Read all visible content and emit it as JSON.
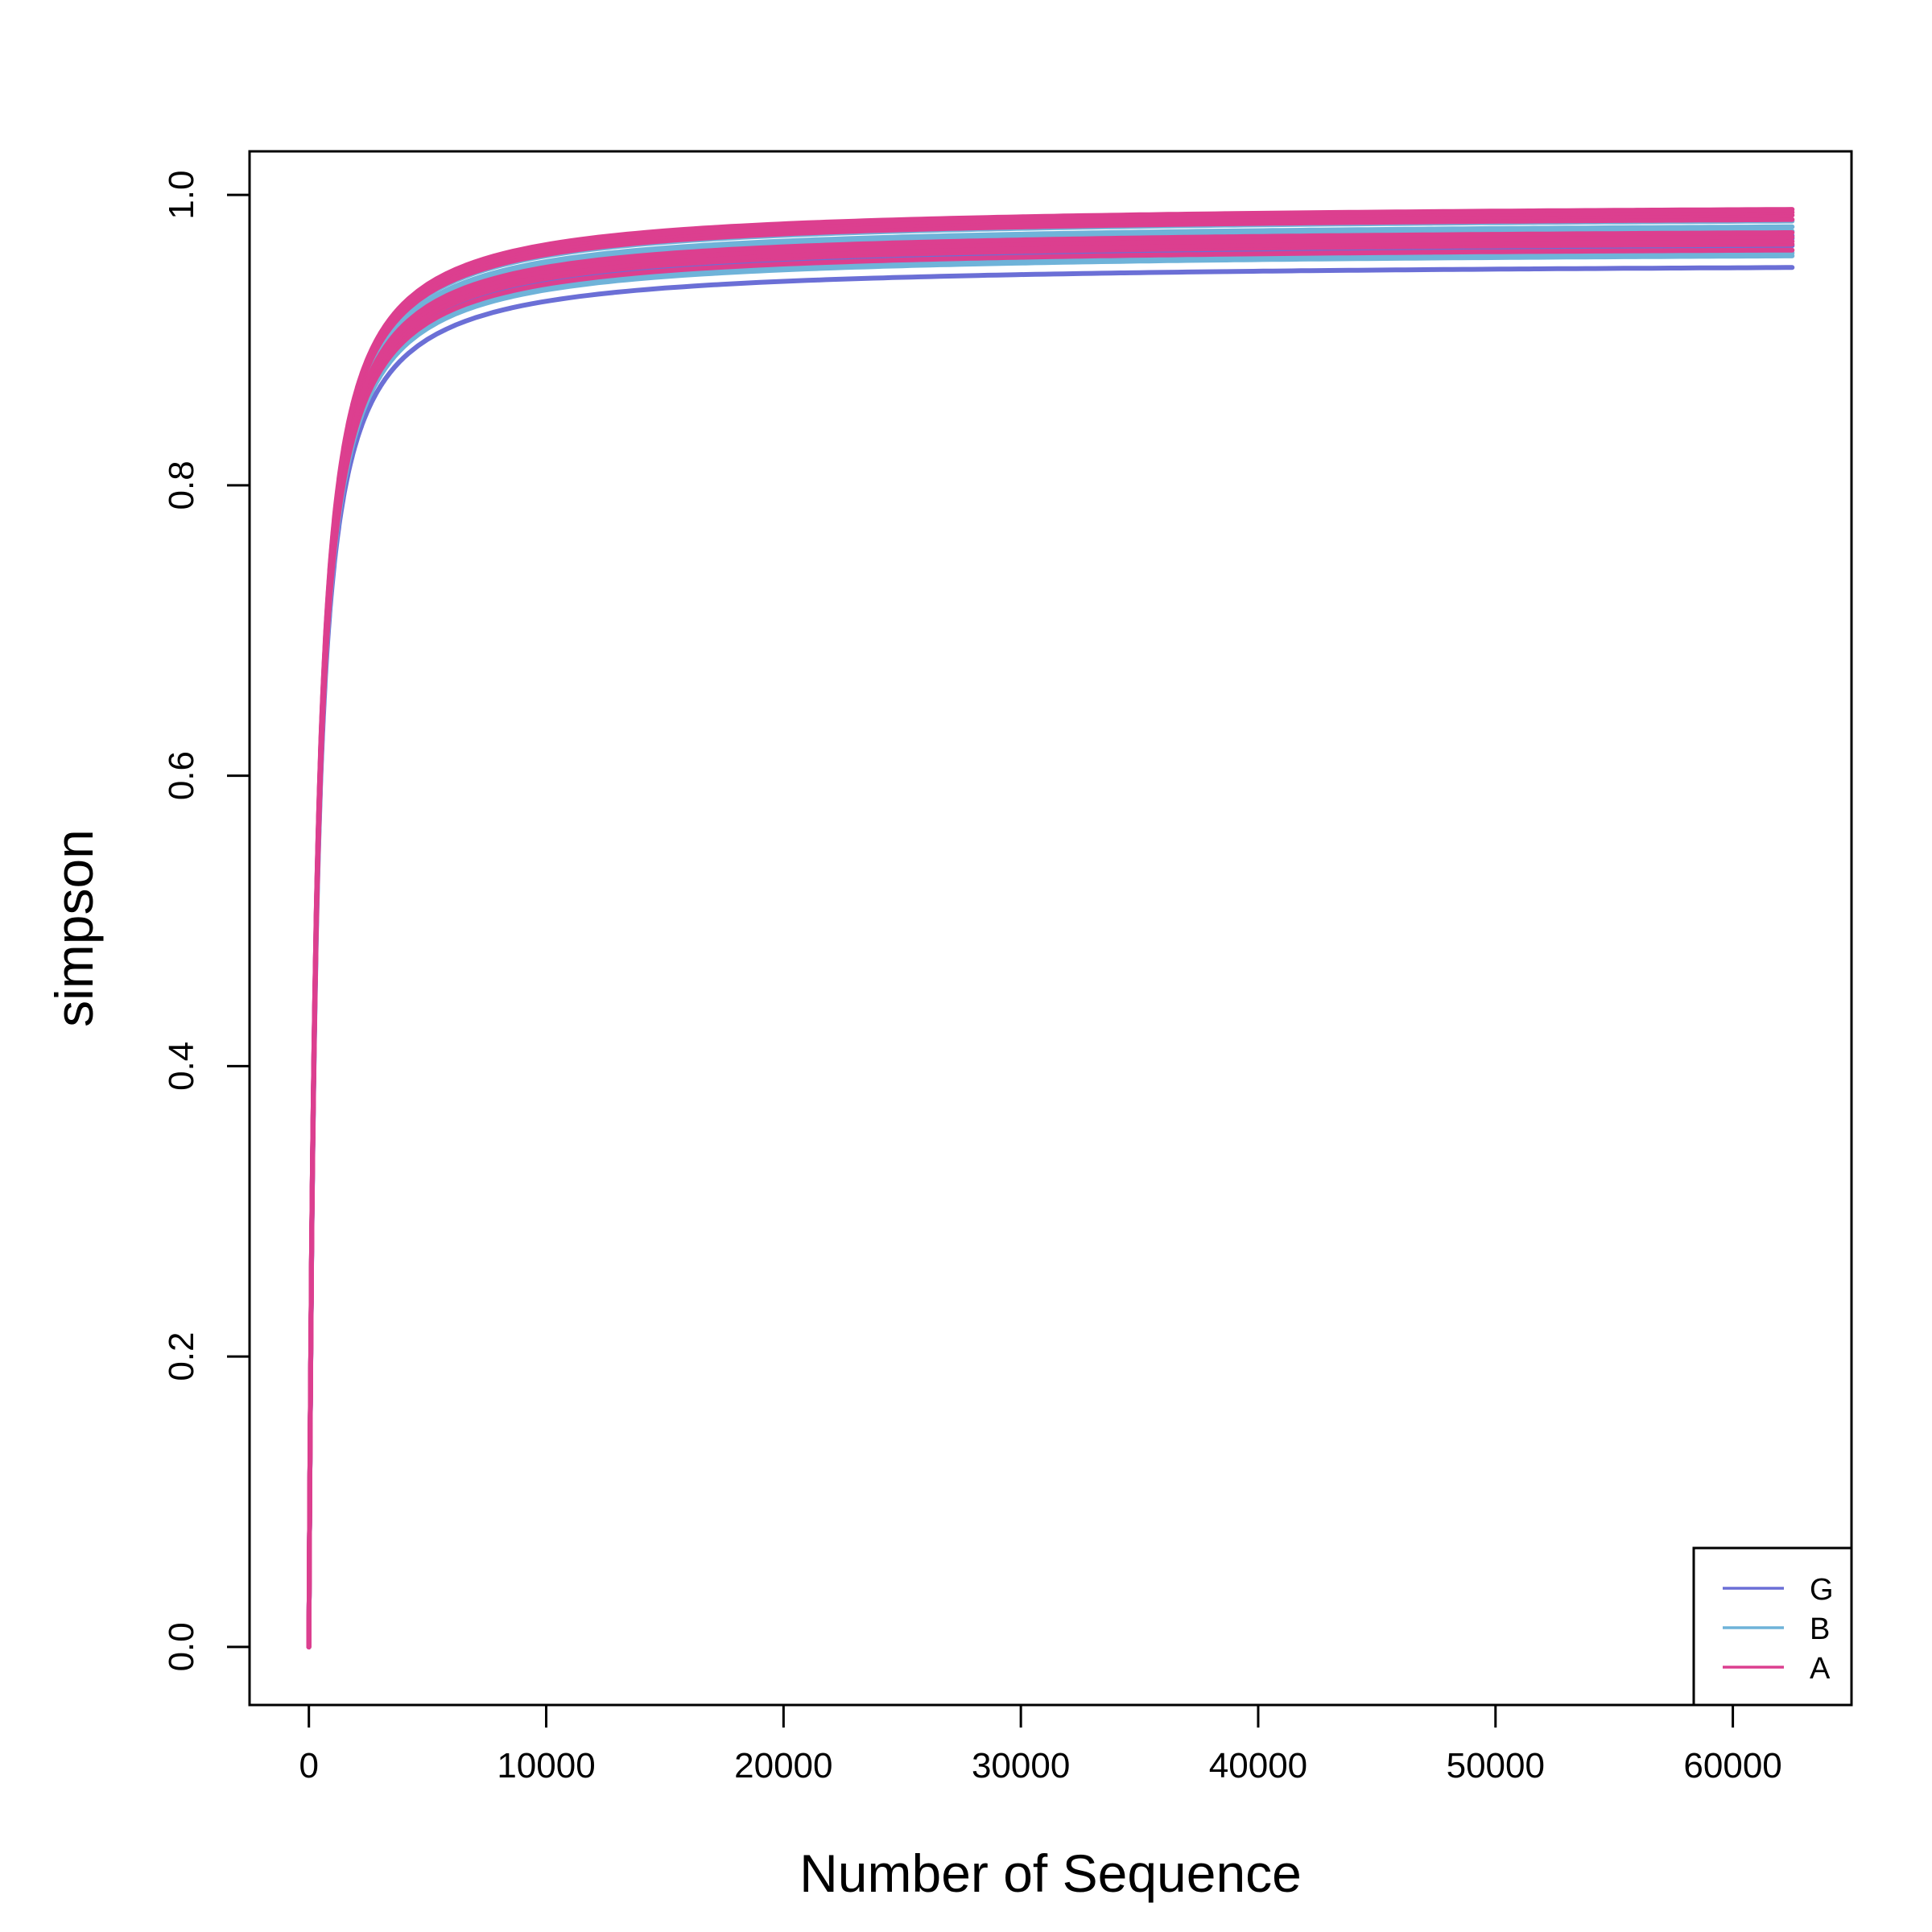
{
  "chart_data": {
    "type": "line",
    "title": "",
    "xlabel": "Number of Sequence",
    "ylabel": "simpson",
    "xlim": [
      -2500,
      65000
    ],
    "ylim": [
      -0.04,
      1.03
    ],
    "x_ticks": [
      0,
      10000,
      20000,
      30000,
      40000,
      50000,
      60000
    ],
    "x_tick_labels": [
      "0",
      "10000",
      "20000",
      "30000",
      "40000",
      "50000",
      "60000"
    ],
    "y_ticks": [
      0.0,
      0.2,
      0.4,
      0.6,
      0.8,
      1.0
    ],
    "y_tick_labels": [
      "0.0",
      "0.2",
      "0.4",
      "0.6",
      "0.8",
      "1.0"
    ],
    "grid": false,
    "legend": {
      "position": "bottom-right",
      "entries": [
        {
          "label": "G",
          "color": "#6b6fd6"
        },
        {
          "label": "B",
          "color": "#6fb3d9"
        },
        {
          "label": "A",
          "color": "#dc3f8f"
        }
      ]
    },
    "x_max": 62500,
    "series": [
      {
        "group": "G",
        "color": "#6b6fd6",
        "final_value": 0.95
      },
      {
        "group": "G",
        "color": "#6b6fd6",
        "final_value": 0.965
      },
      {
        "group": "G",
        "color": "#6b6fd6",
        "final_value": 0.97
      },
      {
        "group": "G",
        "color": "#6b6fd6",
        "final_value": 0.972
      },
      {
        "group": "B",
        "color": "#6fb3d9",
        "final_value": 0.958
      },
      {
        "group": "B",
        "color": "#6fb3d9",
        "final_value": 0.96
      },
      {
        "group": "B",
        "color": "#6fb3d9",
        "final_value": 0.975
      },
      {
        "group": "B",
        "color": "#6fb3d9",
        "final_value": 0.978
      },
      {
        "group": "B",
        "color": "#6fb3d9",
        "final_value": 0.982
      },
      {
        "group": "A",
        "color": "#dc3f8f",
        "final_value": 0.962
      },
      {
        "group": "A",
        "color": "#dc3f8f",
        "final_value": 0.966
      },
      {
        "group": "A",
        "color": "#dc3f8f",
        "final_value": 0.968
      },
      {
        "group": "A",
        "color": "#dc3f8f",
        "final_value": 0.971
      },
      {
        "group": "A",
        "color": "#dc3f8f",
        "final_value": 0.974
      },
      {
        "group": "A",
        "color": "#dc3f8f",
        "final_value": 0.983
      },
      {
        "group": "A",
        "color": "#dc3f8f",
        "final_value": 0.986
      },
      {
        "group": "A",
        "color": "#dc3f8f",
        "final_value": 0.988
      },
      {
        "group": "A",
        "color": "#dc3f8f",
        "final_value": 0.99
      }
    ]
  }
}
